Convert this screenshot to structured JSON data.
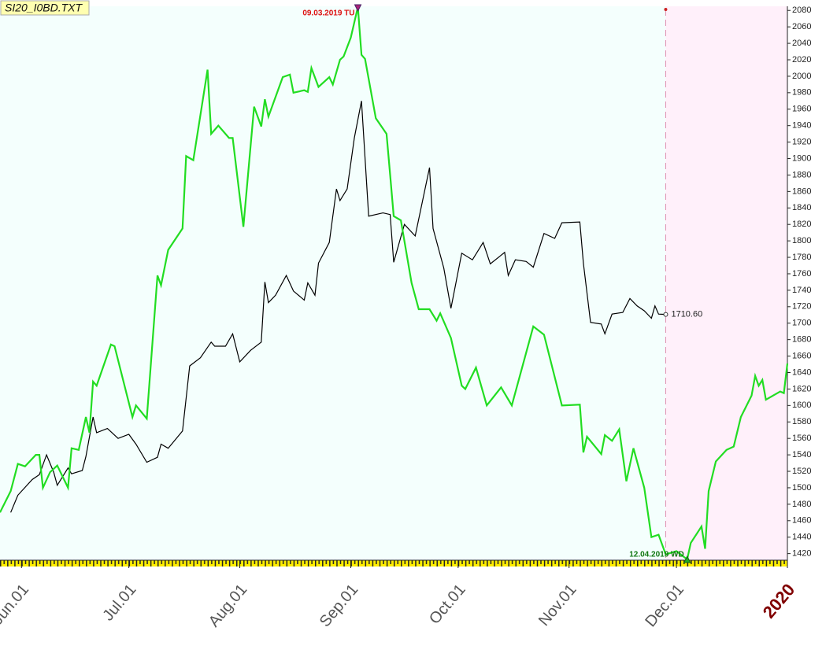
{
  "chart_data": {
    "type": "line",
    "title": "SI20_I0BD.TXT",
    "xlim": [
      "2019-05-26",
      "2020-01-01"
    ],
    "ylim": [
      1412,
      2085
    ],
    "yticks": [
      1420,
      1440,
      1460,
      1480,
      1500,
      1520,
      1540,
      1560,
      1580,
      1600,
      1620,
      1640,
      1660,
      1680,
      1700,
      1720,
      1740,
      1760,
      1780,
      1800,
      1820,
      1840,
      1860,
      1880,
      1900,
      1920,
      1940,
      1960,
      1980,
      2000,
      2020,
      2040,
      2060,
      2080
    ],
    "xticks": [
      {
        "value": "2019-06-01",
        "label": "Jun.01"
      },
      {
        "value": "2019-07-01",
        "label": "Jul.01"
      },
      {
        "value": "2019-08-01",
        "label": "Aug.01"
      },
      {
        "value": "2019-09-01",
        "label": "Sep.01"
      },
      {
        "value": "2019-10-01",
        "label": "Oct.01"
      },
      {
        "value": "2019-11-01",
        "label": "Nov.01"
      },
      {
        "value": "2019-12-01",
        "label": "Dec.01"
      },
      {
        "value": "2020-01-01",
        "label": "2020"
      }
    ],
    "annotations": [
      {
        "text": "09.03.2019 TU",
        "color": "#dd1111"
      },
      {
        "text": "12.04.2019 WD",
        "color": "#117711"
      }
    ],
    "series": [
      {
        "color": "#000000",
        "x": [
          "2019-05-29",
          "2019-05-31",
          "2019-06-04",
          "2019-06-06",
          "2019-06-08",
          "2019-06-10",
          "2019-06-11",
          "2019-06-14",
          "2019-06-15",
          "2019-06-18",
          "2019-06-19",
          "2019-06-21",
          "2019-06-22",
          "2019-06-25",
          "2019-06-28",
          "2019-07-01",
          "2019-07-03",
          "2019-07-06",
          "2019-07-09",
          "2019-07-10",
          "2019-07-12",
          "2019-07-16",
          "2019-07-18",
          "2019-07-21",
          "2019-07-24",
          "2019-07-25",
          "2019-07-28",
          "2019-07-30",
          "2019-08-01",
          "2019-08-04",
          "2019-08-07",
          "2019-08-08",
          "2019-08-09",
          "2019-08-11",
          "2019-08-14",
          "2019-08-16",
          "2019-08-19",
          "2019-08-20",
          "2019-08-22",
          "2019-08-23",
          "2019-08-26",
          "2019-08-28",
          "2019-08-29",
          "2019-08-31",
          "2019-09-02",
          "2019-09-04",
          "2019-09-06",
          "2019-09-10",
          "2019-09-12",
          "2019-09-13",
          "2019-09-16",
          "2019-09-19",
          "2019-09-23",
          "2019-09-24",
          "2019-09-27",
          "2019-09-29",
          "2019-10-02",
          "2019-10-05",
          "2019-10-08",
          "2019-10-10",
          "2019-10-14",
          "2019-10-15",
          "2019-10-17",
          "2019-10-20",
          "2019-10-22",
          "2019-10-25",
          "2019-10-28",
          "2019-10-30",
          "2019-11-04",
          "2019-11-05",
          "2019-11-07",
          "2019-11-10",
          "2019-11-11",
          "2019-11-13",
          "2019-11-16",
          "2019-11-18",
          "2019-11-20",
          "2019-11-22",
          "2019-11-24",
          "2019-11-25",
          "2019-11-26",
          "2019-11-28"
        ],
        "values": [
          1470,
          1491,
          1510,
          1516,
          1540,
          1519,
          1503,
          1524,
          1517,
          1521,
          1538,
          1586,
          1567,
          1572,
          1560,
          1565,
          1553,
          1531,
          1537,
          1553,
          1548,
          1569,
          1648,
          1658,
          1677,
          1672,
          1672,
          1687,
          1653,
          1667,
          1677,
          1750,
          1725,
          1734,
          1758,
          1739,
          1728,
          1749,
          1734,
          1773,
          1798,
          1863,
          1849,
          1863,
          1925,
          1970,
          1830,
          1834,
          1832,
          1774,
          1820,
          1806,
          1889,
          1815,
          1767,
          1718,
          1785,
          1777,
          1798,
          1772,
          1786,
          1758,
          1777,
          1775,
          1768,
          1809,
          1803,
          1822,
          1823,
          1773,
          1701,
          1699,
          1687,
          1711,
          1713,
          1730,
          1721,
          1715,
          1706,
          1721,
          1711,
          1710.6
        ],
        "value_labels": [
          null,
          null,
          null,
          null,
          null,
          null,
          null,
          null,
          null,
          null,
          null,
          null,
          null,
          null,
          null,
          null,
          null,
          null,
          null,
          null,
          null,
          null,
          null,
          null,
          null,
          null,
          null,
          null,
          null,
          null,
          null,
          null,
          null,
          null,
          null,
          null,
          null,
          null,
          null,
          null,
          null,
          null,
          null,
          null,
          null,
          null,
          null,
          null,
          null,
          null,
          null,
          null,
          null,
          null,
          null,
          null,
          null,
          null,
          null,
          null,
          null,
          null,
          null,
          null,
          null,
          null,
          null,
          null,
          null,
          null,
          null,
          null,
          null,
          null,
          null,
          null,
          null,
          null,
          null,
          null,
          null,
          "1710.60"
        ]
      },
      {
        "color": "#22dd22",
        "x": [
          "2019-05-26",
          "2019-05-29",
          "2019-05-31",
          "2019-06-02",
          "2019-06-05",
          "2019-06-06",
          "2019-06-07",
          "2019-06-09",
          "2019-06-11",
          "2019-06-14",
          "2019-06-15",
          "2019-06-17",
          "2019-06-19",
          "2019-06-20",
          "2019-06-21",
          "2019-06-22",
          "2019-06-26",
          "2019-06-27",
          "2019-07-02",
          "2019-07-03",
          "2019-07-06",
          "2019-07-09",
          "2019-07-10",
          "2019-07-12",
          "2019-07-16",
          "2019-07-17",
          "2019-07-19",
          "2019-07-23",
          "2019-07-24",
          "2019-07-26",
          "2019-07-29",
          "2019-07-30",
          "2019-08-02",
          "2019-08-05",
          "2019-08-07",
          "2019-08-08",
          "2019-08-09",
          "2019-08-13",
          "2019-08-15",
          "2019-08-16",
          "2019-08-19",
          "2019-08-20",
          "2019-08-21",
          "2019-08-23",
          "2019-08-26",
          "2019-08-27",
          "2019-08-29",
          "2019-08-30",
          "2019-09-01",
          "2019-09-03",
          "2019-09-04",
          "2019-09-05",
          "2019-09-08",
          "2019-09-11",
          "2019-09-12",
          "2019-09-13",
          "2019-09-15",
          "2019-09-18",
          "2019-09-20",
          "2019-09-23",
          "2019-09-25",
          "2019-09-26",
          "2019-09-29",
          "2019-10-02",
          "2019-10-03",
          "2019-10-06",
          "2019-10-09",
          "2019-10-13",
          "2019-10-16",
          "2019-10-22",
          "2019-10-25",
          "2019-10-30",
          "2019-11-04",
          "2019-11-05",
          "2019-11-06",
          "2019-11-10",
          "2019-11-11",
          "2019-11-13",
          "2019-11-15",
          "2019-11-17",
          "2019-11-19",
          "2019-11-22",
          "2019-11-24",
          "2019-11-26",
          "2019-11-28",
          "2019-12-01",
          "2019-12-04",
          "2019-12-05",
          "2019-12-08",
          "2019-12-09",
          "2019-12-10",
          "2019-12-12",
          "2019-12-15",
          "2019-12-17",
          "2019-12-19",
          "2019-12-22",
          "2019-12-23",
          "2019-12-24",
          "2019-12-25",
          "2019-12-26",
          "2019-12-30",
          "2019-12-31",
          "2020-01-01"
        ],
        "values": [
          1470,
          1496,
          1529,
          1526,
          1540,
          1540,
          1500,
          1519,
          1527,
          1500,
          1548,
          1546,
          1586,
          1567,
          1629,
          1624,
          1674,
          1672,
          1586,
          1600,
          1584,
          1758,
          1746,
          1789,
          1815,
          1903,
          1898,
          2008,
          1930,
          1940,
          1925,
          1925,
          1817,
          1963,
          1939,
          1972,
          1951,
          1999,
          2002,
          1980,
          1983,
          1981,
          2010,
          1987,
          1999,
          1990,
          2020,
          2024,
          2047,
          2084,
          2026,
          2021,
          1949,
          1930,
          1880,
          1830,
          1825,
          1749,
          1717,
          1717,
          1703,
          1712,
          1682,
          1624,
          1620,
          1646,
          1600,
          1622,
          1600,
          1696,
          1686,
          1600,
          1601,
          1543,
          1562,
          1541,
          1564,
          1557,
          1571,
          1508,
          1548,
          1500,
          1440,
          1443,
          1419,
          1423,
          1413,
          1433,
          1453,
          1426,
          1496,
          1532,
          1546,
          1550,
          1586,
          1612,
          1636,
          1624,
          1631,
          1607,
          1617,
          1615,
          1651
        ]
      }
    ]
  }
}
